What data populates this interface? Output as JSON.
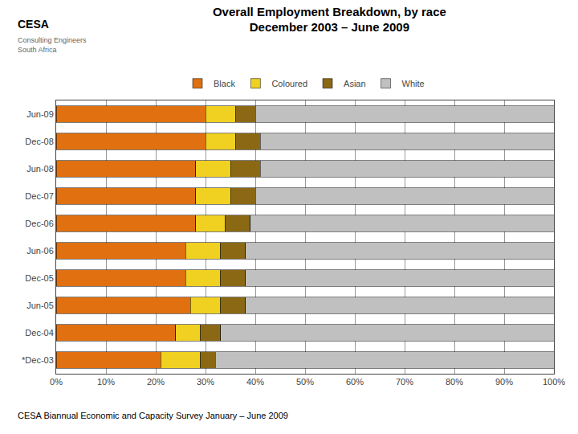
{
  "chart_data": {
    "type": "bar",
    "orientation": "horizontal",
    "stacked": true,
    "title": "Overall Employment Breakdown, by race\nDecember 2003 – June 2009",
    "subtitle": "CESA Biannual Economic and Capacity Survey January – June 2009",
    "annotations": [
      "CESA",
      "Consulting Engineers\nSouth Africa"
    ],
    "categories": [
      "Jun-09",
      "Dec-08",
      "Jun-08",
      "Dec-07",
      "Dec-06",
      "Jun-06",
      "Dec-05",
      "Jun-05",
      "Dec-04",
      "*Dec-03"
    ],
    "series": [
      {
        "name": "Black",
        "color": "#E07010",
        "values": [
          30,
          30,
          28,
          28,
          28,
          26,
          26,
          27,
          24,
          21
        ]
      },
      {
        "name": "Coloured",
        "color": "#F0D020",
        "values": [
          6,
          6,
          7,
          7,
          6,
          7,
          7,
          6,
          5,
          8
        ]
      },
      {
        "name": "Asian",
        "color": "#8B6914",
        "values": [
          4,
          5,
          6,
          5,
          5,
          5,
          5,
          5,
          4,
          3
        ]
      },
      {
        "name": "White",
        "color": "#C0C0C0",
        "values": [
          60,
          59,
          59,
          60,
          61,
          62,
          62,
          62,
          67,
          68
        ]
      }
    ],
    "xlim": [
      0,
      100
    ],
    "xticks": [
      {
        "value": 0,
        "label": "0%"
      },
      {
        "value": 10,
        "label": "10%"
      },
      {
        "value": 20,
        "label": "20%"
      },
      {
        "value": 30,
        "label": "30%"
      },
      {
        "value": 40,
        "label": "40%"
      },
      {
        "value": 50,
        "label": "50%"
      },
      {
        "value": 60,
        "label": "60%"
      },
      {
        "value": 70,
        "label": "70%"
      },
      {
        "value": 80,
        "label": "80%"
      },
      {
        "value": 90,
        "label": "90%"
      },
      {
        "value": 100,
        "label": "100%"
      }
    ],
    "grid": true,
    "legend": "top"
  }
}
